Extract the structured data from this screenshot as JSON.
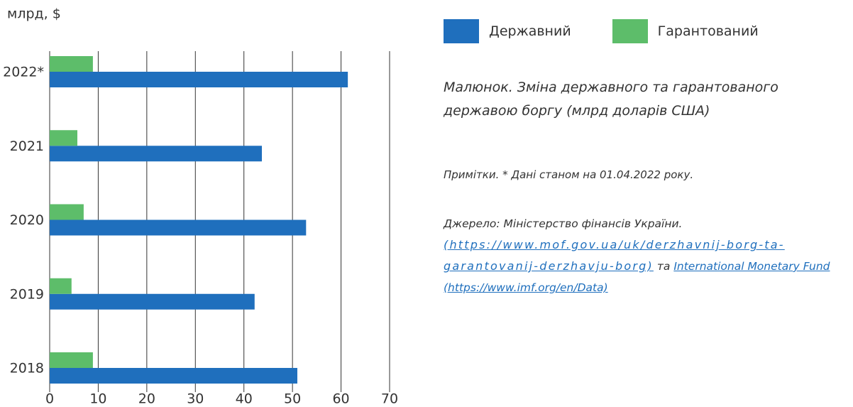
{
  "chart_data": {
    "type": "barh",
    "y_label": "млрд, $",
    "categories": [
      "2022*",
      "2021",
      "2020",
      "2019",
      "2018"
    ],
    "series": [
      {
        "name": "Державний",
        "color": "#1f6fbd",
        "values": [
          61.4,
          43.7,
          52.8,
          42.2,
          51.0
        ]
      },
      {
        "name": "Гарантований",
        "color": "#5dbd6a",
        "values": [
          8.9,
          5.7,
          7.0,
          4.5,
          8.9
        ]
      }
    ],
    "xlim": [
      0,
      70
    ],
    "xticks": [
      0,
      10,
      20,
      30,
      40,
      50,
      60,
      70
    ],
    "grid": true
  },
  "caption": "Малюнок. Зміна державного та гарантованого державою боргу (млрд доларів США)",
  "note": "Примітки. * Дані станом на 01.04.2022 року.",
  "source": {
    "text": "Джерело: Міністерство фінансів України.",
    "link1": "(https://www.mof.gov.ua/uk/derzhavnij-borg-ta-garantovanij-derzhavju-borg)",
    "conjunction": "та",
    "link2": "International Monetary Fund (https://www.imf.org/en/Data)"
  }
}
